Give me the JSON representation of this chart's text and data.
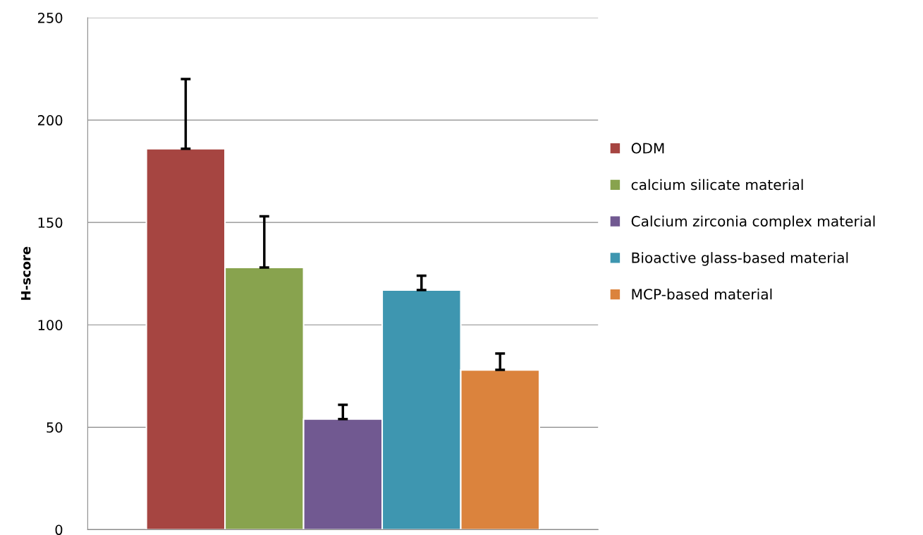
{
  "chart_data": {
    "type": "bar",
    "ylabel": "H-score",
    "categories": [
      null
    ],
    "series": [
      {
        "name": "ODM",
        "color": "#a64541",
        "values": [
          186
        ],
        "errors": [
          [
            186,
            220
          ]
        ]
      },
      {
        "name": "calcium silicate material",
        "color": "#88a34e",
        "values": [
          128
        ],
        "errors": [
          [
            128,
            153
          ]
        ]
      },
      {
        "name": "Calcium zirconia complex material",
        "color": "#715991",
        "values": [
          54
        ],
        "errors": [
          [
            54,
            61
          ]
        ]
      },
      {
        "name": "Bioactive glass-based material",
        "color": "#3e96b0",
        "values": [
          117
        ],
        "errors": [
          [
            117,
            124
          ]
        ]
      },
      {
        "name": "MCP-based material",
        "color": "#db833d",
        "values": [
          78
        ],
        "errors": [
          [
            78,
            86
          ]
        ]
      }
    ],
    "ylim": [
      0,
      250
    ],
    "yticks": [
      0,
      50,
      100,
      150,
      200,
      250
    ],
    "grid": "y",
    "legend": "right"
  }
}
